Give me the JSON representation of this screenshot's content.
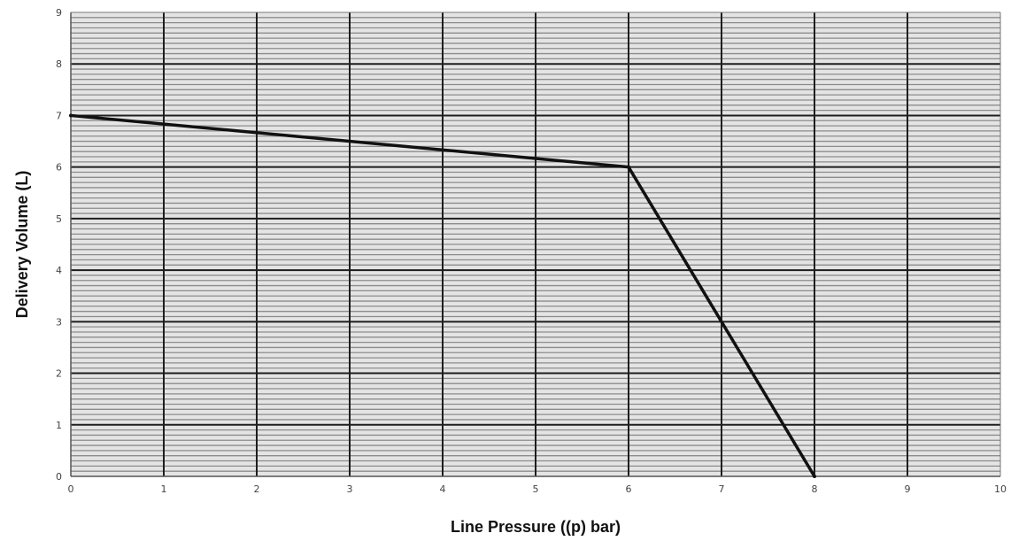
{
  "chart_data": {
    "type": "line",
    "title": "",
    "xlabel": "Line Pressure ((p) bar)",
    "ylabel": "Delivery Volume (L)",
    "xlim": [
      0,
      10
    ],
    "ylim": [
      0,
      9
    ],
    "x_ticks": [
      "0",
      "1",
      "2",
      "3",
      "4",
      "5",
      "6",
      "7",
      "8",
      "9",
      "10"
    ],
    "y_ticks": [
      "0",
      "1",
      "2",
      "3",
      "4",
      "5",
      "6",
      "7",
      "8",
      "9"
    ],
    "grid": true,
    "minor_grid_horizontal": true,
    "plot_background": "#e4e4e4",
    "grid_color": "#1e1e1e",
    "minor_grid_color": "#8c8c8c",
    "line_color": "#111111",
    "series": [
      {
        "x": [
          0,
          6,
          8
        ],
        "y": [
          7,
          6,
          0
        ]
      }
    ]
  }
}
